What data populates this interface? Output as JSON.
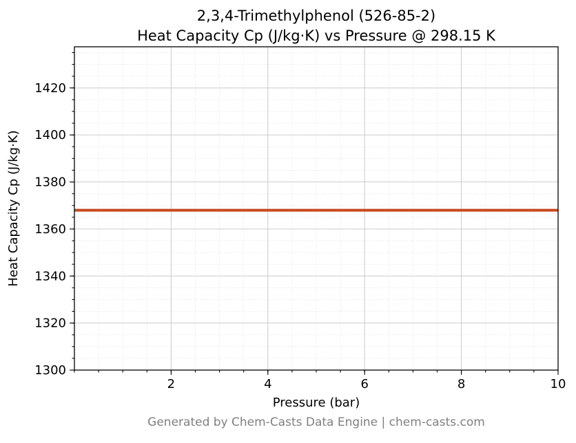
{
  "chart_data": {
    "type": "line",
    "title": "2,3,4-Trimethylphenol (526-85-2)\nHeat Capacity Cp (J/kg·K) vs Pressure @ 298.15 K",
    "title_lines": [
      "2,3,4-Trimethylphenol (526-85-2)",
      "Heat Capacity Cp (J/kg·K) vs Pressure @ 298.15 K"
    ],
    "xlabel": "Pressure (bar)",
    "ylabel": "Heat Capacity Cp (J/kg·K)",
    "xlim": [
      0,
      10
    ],
    "ylim": [
      1300,
      1437.5
    ],
    "xticks": [
      2,
      4,
      6,
      8,
      10
    ],
    "yticks": [
      1300,
      1320,
      1340,
      1360,
      1380,
      1400,
      1420
    ],
    "x_minor_step": 0.5,
    "y_minor_step": 5,
    "grid": true,
    "legend": false,
    "series": [
      {
        "name": "Heat Capacity Cp",
        "color": "#c9491f",
        "linewidth": 4,
        "x": [
          0,
          10
        ],
        "y": [
          1368,
          1368
        ]
      }
    ]
  },
  "footer": {
    "text": "Generated by Chem-Casts Data Engine | chem-casts.com"
  }
}
